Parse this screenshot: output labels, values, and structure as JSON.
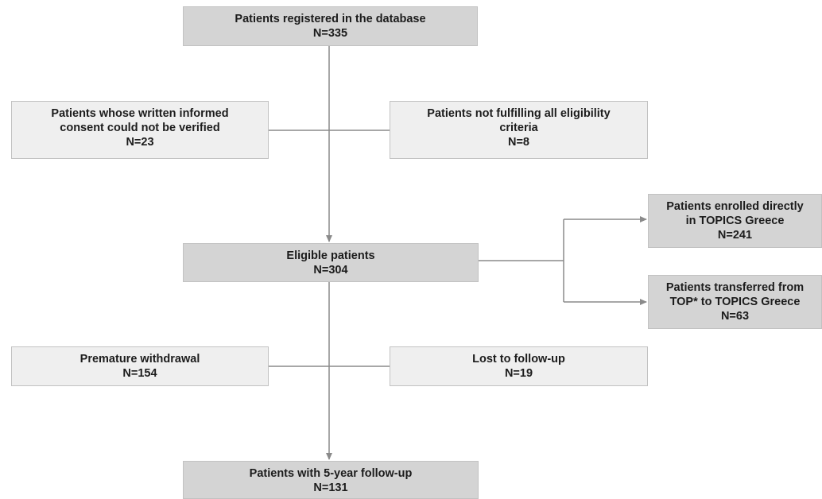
{
  "flowchart": {
    "registered": {
      "label": "Patients registered in the database",
      "count": "N=335"
    },
    "consent_excluded": {
      "label_line1": "Patients whose written informed",
      "label_line2": "consent could not be verified",
      "count": "N=23"
    },
    "eligibility_excluded": {
      "label_line1": "Patients not fulfilling all eligibility",
      "label_line2": "criteria",
      "count": "N=8"
    },
    "eligible": {
      "label": "Eligible patients",
      "count": "N=304"
    },
    "enrolled_directly": {
      "label_line1": "Patients enrolled directly",
      "label_line2": "in TOPICS Greece",
      "count": "N=241"
    },
    "transferred": {
      "label_line1": "Patients transferred from",
      "label_line2": "TOP* to TOPICS Greece",
      "count": "N=63"
    },
    "premature_withdrawal": {
      "label": "Premature withdrawal",
      "count": "N=154"
    },
    "lost_followup": {
      "label": "Lost to follow-up",
      "count": "N=19"
    },
    "five_year": {
      "label": "Patients with 5-year follow-up",
      "count": "N=131"
    }
  },
  "colors": {
    "main_box": "#d4d4d4",
    "side_box": "#efefef",
    "connector": "#8a8a8a"
  }
}
